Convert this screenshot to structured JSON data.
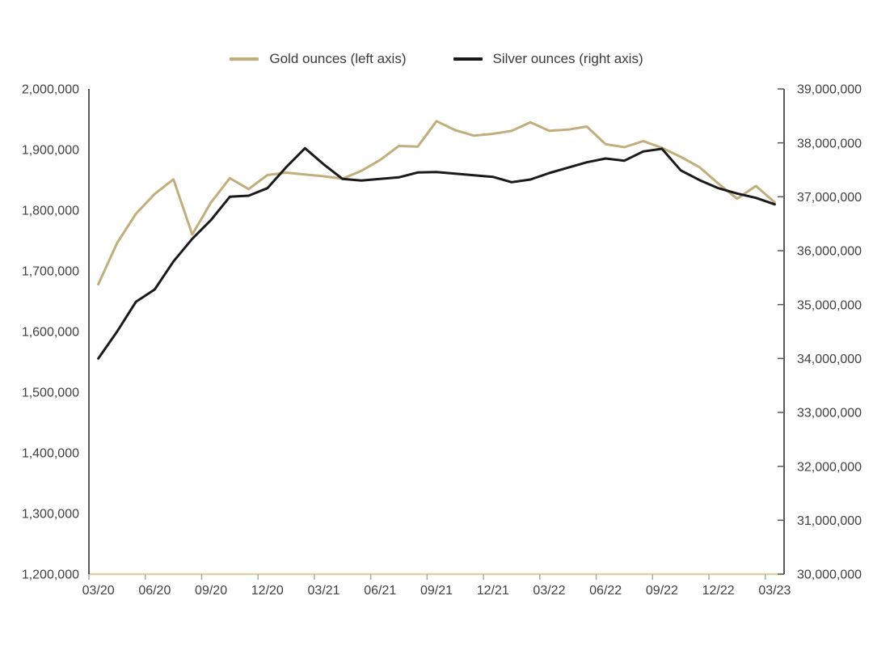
{
  "legend": {
    "items": [
      {
        "label": "Gold ounces (left axis)",
        "color": "#c2ae7c"
      },
      {
        "label": "Silver ounces (right axis)",
        "color": "#1a1a1a"
      }
    ]
  },
  "chart_data": {
    "type": "line",
    "x": [
      "03/20",
      "04/20",
      "05/20",
      "06/20",
      "07/20",
      "08/20",
      "09/20",
      "10/20",
      "11/20",
      "12/20",
      "01/21",
      "02/21",
      "03/21",
      "04/21",
      "05/21",
      "06/21",
      "07/21",
      "08/21",
      "09/21",
      "10/21",
      "11/21",
      "12/21",
      "01/22",
      "02/22",
      "03/22",
      "04/22",
      "05/22",
      "06/22",
      "07/22",
      "08/22",
      "09/22",
      "10/22",
      "11/22",
      "12/22",
      "01/23",
      "02/23",
      "03/23"
    ],
    "x_tick_labels": [
      "03/20",
      "06/20",
      "09/20",
      "12/20",
      "03/21",
      "06/21",
      "09/21",
      "12/21",
      "03/22",
      "06/22",
      "09/22",
      "12/22",
      "03/23"
    ],
    "x_tick_every": 3,
    "series": [
      {
        "name": "Gold ounces (left axis)",
        "axis": "left",
        "color": "#c2ae7c",
        "values": [
          1678000,
          1746000,
          1794000,
          1827000,
          1851000,
          1760000,
          1813000,
          1853000,
          1835000,
          1858000,
          1862000,
          1859000,
          1856000,
          1852000,
          1865000,
          1883000,
          1906000,
          1905000,
          1947000,
          1932000,
          1923000,
          1926000,
          1931000,
          1945000,
          1931000,
          1933000,
          1938000,
          1909000,
          1904000,
          1914000,
          1903000,
          1888000,
          1871000,
          1844000,
          1819000,
          1840000,
          1813000
        ]
      },
      {
        "name": "Silver ounces (right axis)",
        "axis": "right",
        "color": "#1a1a1a",
        "values": [
          34000000,
          34500000,
          35050000,
          35280000,
          35800000,
          36220000,
          36570000,
          37000000,
          37020000,
          37160000,
          37550000,
          37900000,
          37600000,
          37330000,
          37300000,
          37330000,
          37360000,
          37450000,
          37460000,
          37430000,
          37400000,
          37370000,
          37270000,
          37320000,
          37440000,
          37540000,
          37640000,
          37710000,
          37670000,
          37840000,
          37890000,
          37490000,
          37310000,
          37160000,
          37060000,
          36980000,
          36860000
        ]
      }
    ],
    "left_axis": {
      "min": 1200000,
      "max": 2000000,
      "step": 100000
    },
    "right_axis": {
      "min": 30000000,
      "max": 39000000,
      "step": 1000000
    },
    "grid": false,
    "legend_position": "top",
    "title": "",
    "xlabel": "",
    "ylabel_left": "",
    "ylabel_right": ""
  },
  "colors": {
    "background": "#ffffff",
    "axis_line_dark": "#595959",
    "axis_line_bottom": "#ddd2ac",
    "tick_mark": "#a9a9a9",
    "label_text": "#3f3f3f"
  }
}
